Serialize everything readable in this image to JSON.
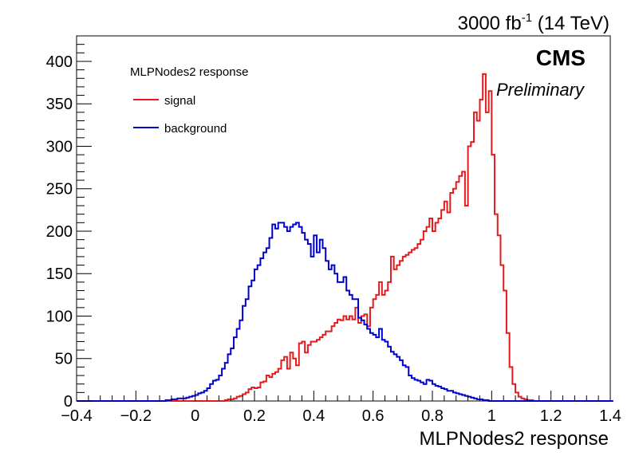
{
  "chart_data": {
    "type": "line",
    "lumi_label": "3000 fb",
    "lumi_exponent": "-1",
    "energy_label": "(14 TeV)",
    "experiment": "CMS",
    "status": "Preliminary",
    "xlabel": "MLPNodes2 response",
    "ylabel": "",
    "xlim": [
      -0.4,
      1.4
    ],
    "ylim": [
      0,
      430
    ],
    "xticks": [
      "−0.4",
      "−0.2",
      "0",
      "0.2",
      "0.4",
      "0.6",
      "0.8",
      "1",
      "1.2",
      "1.4"
    ],
    "xtick_values": [
      -0.4,
      -0.2,
      0,
      0.2,
      0.4,
      0.6,
      0.8,
      1.0,
      1.2,
      1.4
    ],
    "yticks": [
      "0",
      "50",
      "100",
      "150",
      "200",
      "250",
      "300",
      "350",
      "400"
    ],
    "ytick_values": [
      0,
      50,
      100,
      150,
      200,
      250,
      300,
      350,
      400
    ],
    "bin_start": -0.4,
    "bin_width": 0.01,
    "legend_title": "MLPNodes2 response",
    "legend_position": "top-left",
    "series": [
      {
        "name": "signal",
        "color": "#e41a1c",
        "values": [
          0,
          0,
          0,
          0,
          0,
          0,
          0,
          0,
          0,
          0,
          0,
          0,
          0,
          0,
          0,
          0,
          0,
          0,
          0,
          0,
          0,
          0,
          0,
          0,
          0,
          0,
          0,
          0,
          0,
          0,
          0,
          0,
          0,
          0,
          0,
          0,
          0,
          0,
          0,
          0,
          0,
          0,
          0,
          0,
          0,
          0,
          0,
          0,
          0,
          0,
          1,
          2,
          2,
          3,
          5,
          6,
          8,
          10,
          14,
          16,
          15,
          16,
          22,
          23,
          30,
          28,
          32,
          34,
          38,
          48,
          52,
          38,
          57,
          50,
          42,
          68,
          70,
          57,
          66,
          70,
          70,
          72,
          75,
          78,
          82,
          82,
          88,
          92,
          96,
          95,
          100,
          96,
          100,
          96,
          110,
          92,
          100,
          102,
          88,
          110,
          120,
          125,
          140,
          125,
          130,
          140,
          170,
          155,
          160,
          165,
          170,
          172,
          175,
          178,
          180,
          185,
          190,
          200,
          205,
          215,
          200,
          210,
          215,
          225,
          235,
          222,
          245,
          250,
          258,
          265,
          270,
          230,
          300,
          305,
          340,
          330,
          355,
          385,
          340,
          365,
          290,
          220,
          195,
          160,
          130,
          80,
          40,
          20,
          10,
          5,
          3,
          2,
          1,
          1,
          0,
          0,
          0,
          0,
          0,
          0,
          0,
          0,
          0,
          0,
          0,
          0,
          0,
          0,
          0,
          0,
          0,
          0,
          0,
          0,
          0,
          0,
          0,
          0,
          0,
          0,
          0
        ]
      },
      {
        "name": "background",
        "color": "#0000cc",
        "values": [
          0,
          0,
          0,
          0,
          0,
          0,
          0,
          0,
          0,
          0,
          0,
          0,
          0,
          0,
          0,
          0,
          0,
          0,
          0,
          0,
          0,
          0,
          0,
          0,
          0,
          0,
          0,
          0,
          0,
          0,
          1,
          1,
          2,
          2,
          3,
          3,
          3,
          4,
          5,
          6,
          7,
          9,
          10,
          12,
          15,
          20,
          24,
          25,
          30,
          38,
          45,
          55,
          62,
          75,
          85,
          95,
          112,
          120,
          135,
          142,
          155,
          160,
          168,
          175,
          180,
          192,
          208,
          203,
          210,
          210,
          205,
          200,
          205,
          208,
          210,
          205,
          198,
          190,
          185,
          170,
          195,
          175,
          190,
          180,
          165,
          155,
          160,
          150,
          140,
          140,
          146,
          130,
          125,
          120,
          120,
          98,
          95,
          90,
          85,
          80,
          78,
          75,
          85,
          72,
          70,
          64,
          58,
          55,
          52,
          48,
          42,
          40,
          30,
          27,
          25,
          24,
          22,
          20,
          25,
          24,
          20,
          18,
          17,
          15,
          14,
          12,
          12,
          10,
          9,
          8,
          7,
          6,
          5,
          4,
          3,
          2,
          2,
          1,
          1,
          0,
          0,
          0,
          0,
          0,
          0,
          0,
          0,
          0,
          0,
          0,
          0,
          0,
          0,
          0,
          0,
          0,
          0,
          0,
          0,
          0,
          0,
          0,
          0,
          0,
          0,
          0,
          0,
          0,
          0,
          0,
          0,
          0,
          0,
          0,
          0,
          0,
          0,
          0,
          0,
          0,
          0
        ]
      }
    ]
  }
}
